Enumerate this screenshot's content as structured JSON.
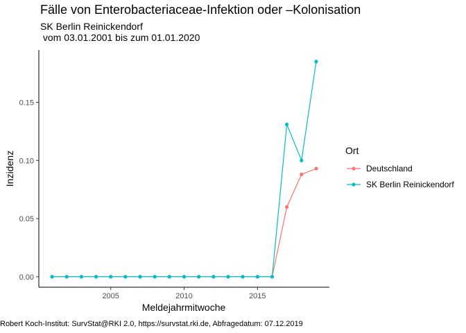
{
  "title": "Fälle von Enterobacteriaceae-Infektion oder –Kolonisation",
  "subtitle_line1": "SK Berlin Reinickendorf",
  "subtitle_line2": " vom 03.01.2001 bis zum 01.01.2020",
  "caption": "Robert Koch-Institut: SurvStat@RKI 2.0, https://survstat.rki.de, Abfragedatum: 07.12.2019",
  "chart_data": {
    "type": "line",
    "title": "Fälle von Enterobacteriaceae-Infektion oder –Kolonisation",
    "subtitle": "SK Berlin Reinickendorf\n vom 03.01.2001 bis zum 01.01.2020",
    "xlabel": "Meldejahrmitwoche",
    "ylabel": "Inzidenz",
    "x": [
      2001,
      2002,
      2003,
      2004,
      2005,
      2006,
      2007,
      2008,
      2009,
      2010,
      2011,
      2012,
      2013,
      2014,
      2015,
      2016,
      2017,
      2018,
      2019
    ],
    "xlim": [
      2000.1,
      2019.9
    ],
    "ylim": [
      -0.009,
      0.195
    ],
    "x_ticks": [
      2005,
      2010,
      2015
    ],
    "y_ticks": [
      0.0,
      0.05,
      0.1,
      0.15
    ],
    "y_tick_labels": [
      "0.00",
      "0.05",
      "0.10",
      "0.15"
    ],
    "grid": false,
    "legend": {
      "title": "Ort",
      "position": "right"
    },
    "series": [
      {
        "name": "Deutschland",
        "color": "#F8766D",
        "values": [
          0,
          0,
          0,
          0,
          0,
          0,
          0,
          0,
          0,
          0,
          0,
          0,
          0,
          0,
          0,
          0,
          0.06,
          0.088,
          0.093
        ]
      },
      {
        "name": "SK Berlin Reinickendorf",
        "color": "#00BFC4",
        "values": [
          0,
          0,
          0,
          0,
          0,
          0,
          0,
          0,
          0,
          0,
          0,
          0,
          0,
          0,
          0,
          0,
          0.131,
          0.1,
          0.185
        ]
      }
    ]
  }
}
